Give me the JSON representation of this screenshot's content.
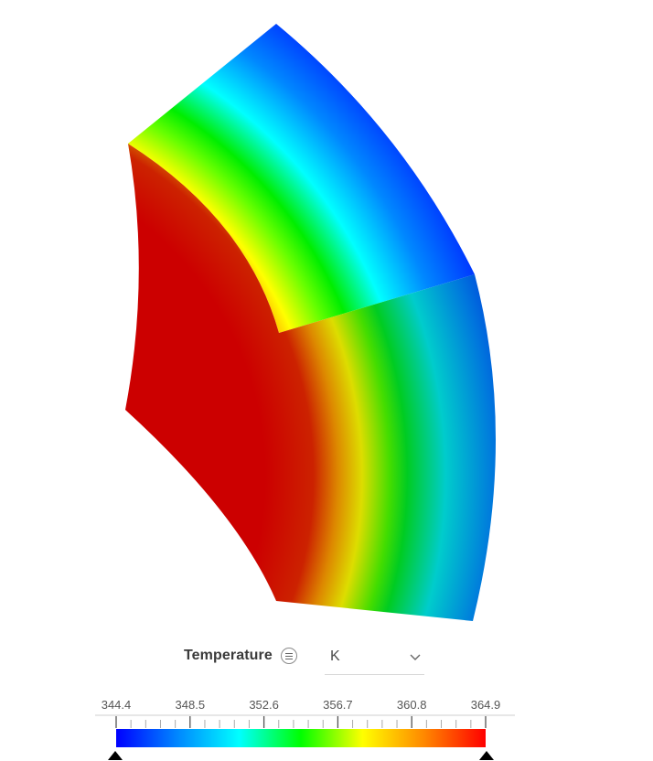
{
  "legend": {
    "title": "Temperature",
    "menu_icon": "list-icon",
    "unit": {
      "selected": "K",
      "chevron_icon": "chevron-down-icon"
    }
  },
  "colorbar": {
    "min": 344.4,
    "max": 364.9,
    "ticks": [
      "344.4",
      "348.5",
      "352.6",
      "356.7",
      "360.8",
      "364.9"
    ],
    "colormap": [
      "#0000ff",
      "#0088ff",
      "#00ffff",
      "#00ff00",
      "#ffff00",
      "#ff8800",
      "#ff0000"
    ],
    "min_handle_icon": "triangle-up-icon",
    "max_handle_icon": "triangle-up-icon"
  }
}
